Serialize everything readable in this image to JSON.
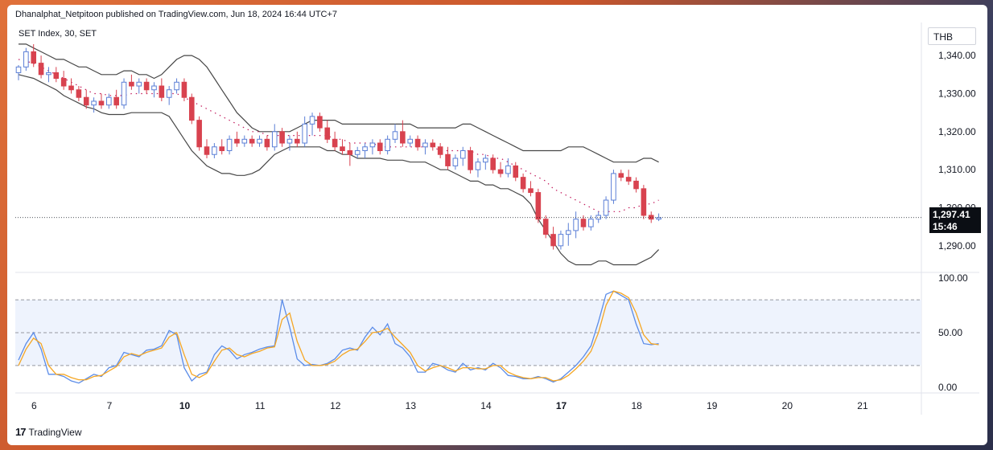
{
  "header": "Dhanalphat_Netpitoon published on TradingView.com, Jun 18, 2024 16:44 UTC+7",
  "symbol_label": "SET Index, 30, SET",
  "currency": "THB",
  "footer_brand": "TradingView",
  "last_price": "1,297.41",
  "countdown": "15:46",
  "colors": {
    "up": "#5b7fd6",
    "down": "#d8424f",
    "band": "#474747",
    "k": "#5b8ce8",
    "d": "#f5a623"
  },
  "chart_data": [
    {
      "type": "candlestick",
      "title": "SET Index, 30, SET",
      "ylim": [
        1283,
        1347
      ],
      "y_ticks": [
        "1,340.00",
        "1,330.00",
        "1,320.00",
        "1,310.00",
        "1,300.00",
        "1,290.00"
      ],
      "y_tick_values": [
        1340,
        1330,
        1320,
        1310,
        1300,
        1290
      ],
      "x_ticks": [
        {
          "label": "6",
          "bold": false,
          "bar": 1
        },
        {
          "label": "7",
          "bold": false,
          "bar": 11
        },
        {
          "label": "10",
          "bold": true,
          "bar": 21
        },
        {
          "label": "11",
          "bold": false,
          "bar": 31
        },
        {
          "label": "12",
          "bold": false,
          "bar": 41
        },
        {
          "label": "13",
          "bold": false,
          "bar": 51
        },
        {
          "label": "14",
          "bold": false,
          "bar": 61
        },
        {
          "label": "17",
          "bold": true,
          "bar": 71
        },
        {
          "label": "18",
          "bold": false,
          "bar": 81
        },
        {
          "label": "19",
          "bold": false,
          "bar": 91
        },
        {
          "label": "20",
          "bold": false,
          "bar": 101
        },
        {
          "label": "21",
          "bold": false,
          "bar": 111
        }
      ],
      "last_price": 1297.41,
      "candles": [
        [
          1335.5,
          1337.5,
          1333.5,
          1337.0
        ],
        [
          1337,
          1342,
          1336,
          1341
        ],
        [
          1341,
          1343,
          1337,
          1338
        ],
        [
          1338,
          1340,
          1334,
          1335
        ],
        [
          1335,
          1337,
          1333,
          1335.5
        ],
        [
          1335.5,
          1337,
          1333,
          1334
        ],
        [
          1334,
          1336,
          1331,
          1332
        ],
        [
          1332,
          1334,
          1330,
          1331
        ],
        [
          1331,
          1332,
          1328,
          1329
        ],
        [
          1329,
          1331,
          1326,
          1327
        ],
        [
          1327,
          1329,
          1325,
          1328
        ],
        [
          1328,
          1330,
          1326,
          1327
        ],
        [
          1327,
          1330,
          1326,
          1329
        ],
        [
          1329,
          1331,
          1326,
          1327
        ],
        [
          1327,
          1334,
          1326,
          1333
        ],
        [
          1333,
          1335,
          1331,
          1332
        ],
        [
          1332,
          1334,
          1330,
          1333
        ],
        [
          1333,
          1334,
          1330,
          1331
        ],
        [
          1331,
          1333,
          1329,
          1332
        ],
        [
          1332,
          1334,
          1328,
          1329
        ],
        [
          1329,
          1332,
          1327,
          1331
        ],
        [
          1331,
          1334,
          1330,
          1333
        ],
        [
          1333,
          1334,
          1328,
          1329
        ],
        [
          1329,
          1330,
          1322,
          1323
        ],
        [
          1323,
          1324,
          1315,
          1316
        ],
        [
          1316,
          1318,
          1313,
          1314
        ],
        [
          1314,
          1317,
          1313,
          1316
        ],
        [
          1316,
          1318,
          1314,
          1315
        ],
        [
          1315,
          1319,
          1314,
          1318
        ],
        [
          1318,
          1320,
          1316,
          1317
        ],
        [
          1317,
          1319,
          1316,
          1318
        ],
        [
          1318,
          1319,
          1316,
          1317
        ],
        [
          1317,
          1319,
          1316,
          1318
        ],
        [
          1318,
          1319,
          1315,
          1316
        ],
        [
          1316,
          1322,
          1315,
          1320
        ],
        [
          1320,
          1321,
          1316,
          1317
        ],
        [
          1317,
          1319,
          1315,
          1318
        ],
        [
          1318,
          1320,
          1316,
          1317
        ],
        [
          1317,
          1324,
          1316,
          1322
        ],
        [
          1322,
          1325,
          1319,
          1324
        ],
        [
          1324,
          1325,
          1320,
          1321
        ],
        [
          1321,
          1323,
          1317,
          1318
        ],
        [
          1318,
          1320,
          1315,
          1316
        ],
        [
          1316,
          1318,
          1314,
          1315
        ],
        [
          1315,
          1317,
          1311,
          1314
        ],
        [
          1314,
          1316,
          1313,
          1315
        ],
        [
          1315,
          1317,
          1313,
          1316
        ],
        [
          1316,
          1318,
          1314,
          1317
        ],
        [
          1317,
          1318,
          1314,
          1315
        ],
        [
          1315,
          1319,
          1314,
          1318
        ],
        [
          1318,
          1322,
          1317,
          1320
        ],
        [
          1320,
          1323,
          1316,
          1317
        ],
        [
          1317,
          1319,
          1316,
          1318
        ],
        [
          1318,
          1319,
          1315,
          1316
        ],
        [
          1316,
          1318,
          1314,
          1317
        ],
        [
          1317,
          1318,
          1315,
          1316
        ],
        [
          1316,
          1317,
          1313,
          1314
        ],
        [
          1314,
          1316,
          1310,
          1311
        ],
        [
          1311,
          1314,
          1310,
          1313
        ],
        [
          1313,
          1316,
          1311,
          1315
        ],
        [
          1315,
          1316,
          1309,
          1310
        ],
        [
          1310,
          1313,
          1308,
          1312
        ],
        [
          1312,
          1314,
          1310,
          1313
        ],
        [
          1313,
          1314,
          1309,
          1310
        ],
        [
          1310,
          1312,
          1308,
          1309
        ],
        [
          1309,
          1313,
          1308,
          1311
        ],
        [
          1311,
          1312,
          1307,
          1308
        ],
        [
          1308,
          1309,
          1304,
          1305
        ],
        [
          1305,
          1307,
          1303,
          1304
        ],
        [
          1304,
          1305,
          1296,
          1297
        ],
        [
          1297,
          1298,
          1292,
          1293
        ],
        [
          1293,
          1295,
          1289,
          1290
        ],
        [
          1290,
          1294,
          1289,
          1293
        ],
        [
          1293,
          1296,
          1290,
          1294
        ],
        [
          1294,
          1299,
          1292,
          1297
        ],
        [
          1297,
          1298,
          1294,
          1295
        ],
        [
          1295,
          1298,
          1294,
          1297
        ],
        [
          1297,
          1299,
          1296,
          1298
        ],
        [
          1298,
          1303,
          1297,
          1302
        ],
        [
          1302,
          1310,
          1301,
          1309
        ],
        [
          1309,
          1310,
          1307,
          1308
        ],
        [
          1308,
          1310,
          1306,
          1307
        ],
        [
          1307,
          1308,
          1304,
          1305
        ],
        [
          1305,
          1306,
          1297,
          1298
        ],
        [
          1298,
          1299,
          1296,
          1297
        ],
        [
          1297,
          1298.5,
          1296.5,
          1297.41
        ]
      ],
      "bollinger": {
        "upper": [
          1343,
          1343,
          1342,
          1341,
          1340,
          1339,
          1339,
          1338,
          1337,
          1337,
          1336,
          1335,
          1335,
          1335,
          1336,
          1336,
          1335,
          1335,
          1334,
          1335,
          1337,
          1339,
          1340,
          1340,
          1339,
          1337,
          1334,
          1331,
          1328,
          1325,
          1323,
          1321,
          1320,
          1320,
          1320,
          1320,
          1320,
          1321,
          1322,
          1323,
          1323,
          1323,
          1323,
          1322,
          1322,
          1322,
          1322,
          1322,
          1322,
          1322,
          1322,
          1322,
          1322,
          1321,
          1321,
          1321,
          1321,
          1321,
          1321,
          1322,
          1322,
          1321,
          1320,
          1319,
          1318,
          1317,
          1316,
          1315,
          1315,
          1315,
          1315,
          1315,
          1315,
          1316,
          1316,
          1316,
          1315,
          1314,
          1313,
          1312,
          1312,
          1312,
          1312,
          1313,
          1313,
          1312
        ],
        "middle": [
          1339,
          1338.5,
          1338,
          1337,
          1336,
          1335,
          1334,
          1333,
          1332,
          1331,
          1330,
          1330,
          1329.5,
          1329.5,
          1329.5,
          1330,
          1330,
          1330,
          1330,
          1330,
          1330,
          1330,
          1329,
          1328,
          1327,
          1326,
          1325,
          1324,
          1323,
          1322,
          1321,
          1320,
          1320,
          1319,
          1319,
          1319,
          1319,
          1319,
          1319,
          1319,
          1319,
          1319,
          1318,
          1318,
          1317,
          1317,
          1317,
          1317,
          1316,
          1316,
          1316,
          1316,
          1316,
          1316,
          1316,
          1316,
          1315,
          1315,
          1315,
          1315,
          1315,
          1314,
          1314,
          1313,
          1313,
          1312,
          1311,
          1310,
          1309,
          1308,
          1307,
          1305,
          1304,
          1303,
          1302,
          1301,
          1300,
          1299,
          1299,
          1299,
          1299,
          1300,
          1300,
          1301,
          1301,
          1302
        ],
        "lower": [
          1335,
          1334.5,
          1334,
          1333,
          1332,
          1331,
          1329.5,
          1328.5,
          1327.5,
          1326.5,
          1326,
          1325,
          1324.5,
          1324.5,
          1324.5,
          1325,
          1325,
          1325,
          1325,
          1325,
          1324,
          1321,
          1318,
          1315,
          1313,
          1311,
          1310,
          1309,
          1309,
          1308.5,
          1308.5,
          1309,
          1310,
          1312,
          1314,
          1315,
          1316,
          1316,
          1316,
          1316,
          1316,
          1315,
          1315,
          1314,
          1314,
          1313,
          1313,
          1313,
          1313,
          1312.5,
          1312.5,
          1312.5,
          1312,
          1312,
          1312,
          1311,
          1310,
          1310,
          1309,
          1308,
          1307,
          1307,
          1306,
          1306,
          1305,
          1305,
          1304,
          1303,
          1301,
          1297,
          1294,
          1291,
          1288,
          1286,
          1285,
          1285,
          1285,
          1286,
          1286,
          1285,
          1285,
          1285,
          1285,
          1286,
          1287,
          1289
        ]
      }
    },
    {
      "type": "line",
      "title": "",
      "ylim": [
        -5,
        105
      ],
      "y_ticks": [
        "100.00",
        "50.00",
        "0.00"
      ],
      "y_tick_values": [
        100,
        50,
        0
      ],
      "levels": [
        80,
        50,
        20
      ],
      "series": [
        {
          "color": "#5b8ce8",
          "values": [
            25,
            40,
            50,
            35,
            12,
            12,
            10,
            6,
            4,
            8,
            12,
            10,
            18,
            20,
            32,
            30,
            28,
            34,
            35,
            38,
            52,
            48,
            18,
            6,
            12,
            14,
            30,
            38,
            34,
            26,
            30,
            32,
            35,
            37,
            38,
            80,
            55,
            26,
            20,
            21,
            20,
            22,
            26,
            34,
            36,
            34,
            46,
            55,
            48,
            58,
            40,
            36,
            28,
            14,
            14,
            22,
            20,
            16,
            14,
            22,
            16,
            18,
            16,
            22,
            18,
            11,
            10,
            8,
            8,
            10,
            8,
            5,
            8,
            14,
            20,
            28,
            38,
            60,
            85,
            88,
            84,
            80,
            58,
            40,
            39,
            40
          ]
        },
        {
          "color": "#f5a623",
          "values": [
            20,
            35,
            45,
            40,
            20,
            12,
            12,
            9,
            7,
            7,
            10,
            11,
            15,
            19,
            28,
            31,
            29,
            32,
            34,
            36,
            46,
            50,
            30,
            12,
            9,
            13,
            24,
            34,
            36,
            30,
            28,
            31,
            33,
            36,
            37,
            62,
            68,
            42,
            25,
            20,
            20,
            21,
            24,
            30,
            34,
            35,
            42,
            50,
            51,
            54,
            46,
            39,
            32,
            20,
            15,
            18,
            20,
            18,
            15,
            18,
            18,
            17,
            17,
            20,
            20,
            14,
            11,
            9,
            8,
            9,
            9,
            6,
            7,
            11,
            17,
            24,
            33,
            50,
            75,
            88,
            86,
            82,
            68,
            48,
            40,
            39
          ]
        }
      ]
    }
  ]
}
